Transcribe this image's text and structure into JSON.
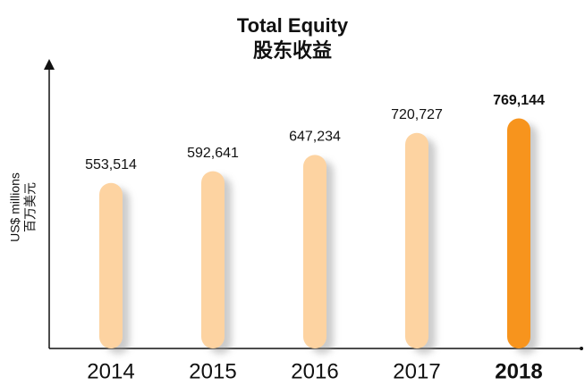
{
  "chart_data": {
    "type": "bar",
    "title": [
      "Total Equity",
      "股东收益"
    ],
    "y_label": [
      "US$ millions",
      "百万美元"
    ],
    "categories": [
      "2014",
      "2015",
      "2016",
      "2017",
      "2018"
    ],
    "values": [
      553514,
      592641,
      647234,
      720727,
      769144
    ],
    "value_labels": [
      "553,514",
      "592,641",
      "647,234",
      "720,727",
      "769,144"
    ],
    "colors": [
      "#fdd3a1",
      "#fdd3a1",
      "#fdd3a1",
      "#fdd3a1",
      "#f7941d"
    ],
    "bold": [
      false,
      false,
      false,
      false,
      true
    ],
    "ylim": [
      0,
      950000
    ]
  }
}
